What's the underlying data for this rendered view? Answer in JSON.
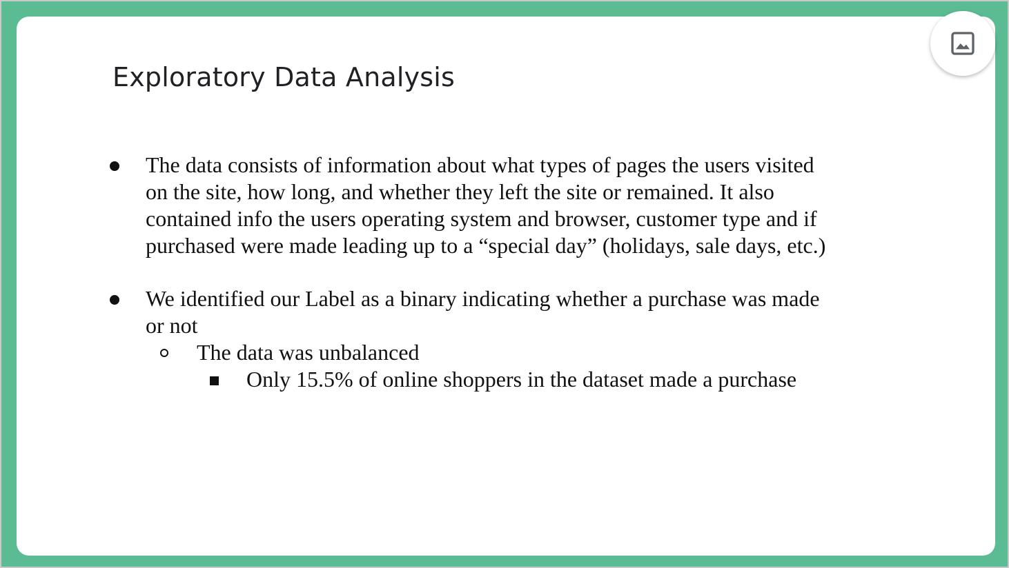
{
  "slide": {
    "title": "Exploratory Data Analysis",
    "bullets": [
      {
        "lines": [
          "The data consists of information about what types of pages the users visited",
          "on the site, how long, and whether they left the site or remained. It also",
          "contained info the users operating system and browser, customer type and if",
          "purchased were made leading up to a “special day” (holidays, sale days, etc.)"
        ]
      },
      {
        "lines": [
          "We identified our Label as a binary indicating whether a purchase was made",
          "or not"
        ],
        "sub": {
          "text": "The data was unbalanced",
          "sub": {
            "text": "Only 15.5% of online shoppers in the dataset made a purchase"
          }
        }
      }
    ]
  },
  "toolbar": {
    "image_button_icon": "image-icon"
  },
  "colors": {
    "frame": "#5bbc93",
    "slide_background": "#ffffff",
    "text": "#111111"
  }
}
